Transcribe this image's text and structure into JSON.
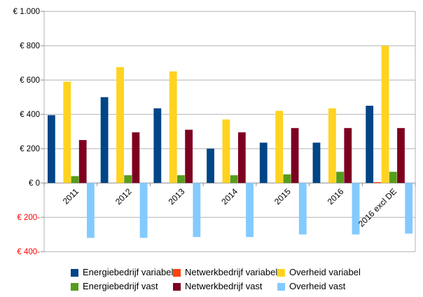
{
  "chart_data": {
    "type": "bar",
    "title": "",
    "xlabel": "",
    "ylabel": "",
    "categories": [
      "2011",
      "2012",
      "2013",
      "2014",
      "2015",
      "2016",
      "2016 excl DE"
    ],
    "series": [
      {
        "name": "Energiebedrijf variabel",
        "color": "#004586",
        "values": [
          395,
          500,
          435,
          200,
          235,
          235,
          450
        ]
      },
      {
        "name": "Netwerkbedrijf variabel",
        "color": "#FF420E",
        "values": [
          0,
          0,
          0,
          0,
          0,
          0,
          5
        ]
      },
      {
        "name": "Overheid variabel",
        "color": "#FFD320",
        "values": [
          590,
          675,
          650,
          370,
          420,
          435,
          800
        ]
      },
      {
        "name": "Energiebedrijf vast",
        "color": "#579D1C",
        "values": [
          40,
          45,
          45,
          45,
          50,
          65,
          65
        ]
      },
      {
        "name": "Netwerkbedrijf vast",
        "color": "#7E0021",
        "values": [
          250,
          295,
          310,
          295,
          320,
          320,
          320
        ]
      },
      {
        "name": "Overheid vast",
        "color": "#83CAFF",
        "values": [
          -320,
          -320,
          -315,
          -315,
          -300,
          -300,
          -295
        ]
      }
    ],
    "ylim": [
      -400,
      1000
    ],
    "ytick_step": 200,
    "yticks": [
      {
        "label": "€ 1.000",
        "value": 1000,
        "negative": false
      },
      {
        "label": "€ 800",
        "value": 800,
        "negative": false
      },
      {
        "label": "€ 600",
        "value": 600,
        "negative": false
      },
      {
        "label": "€ 400",
        "value": 400,
        "negative": false
      },
      {
        "label": "€ 200",
        "value": 200,
        "negative": false
      },
      {
        "label": "€ 0",
        "value": 0,
        "negative": false
      },
      {
        "label": "€ 200-",
        "value": -200,
        "negative": true
      },
      {
        "label": "€ 400-",
        "value": -400,
        "negative": true
      }
    ],
    "grid": "horizontal",
    "legend_position": "bottom",
    "colors": {
      "background": "#ffffff",
      "gridline": "#b3b3b3",
      "zero_axis": "#8c8c8c",
      "tick": "#8c8c8c",
      "tick_label": "#000000",
      "negative_tick_label": "#ff0000",
      "category_label": "#000000",
      "legend_text": "#000000"
    }
  }
}
